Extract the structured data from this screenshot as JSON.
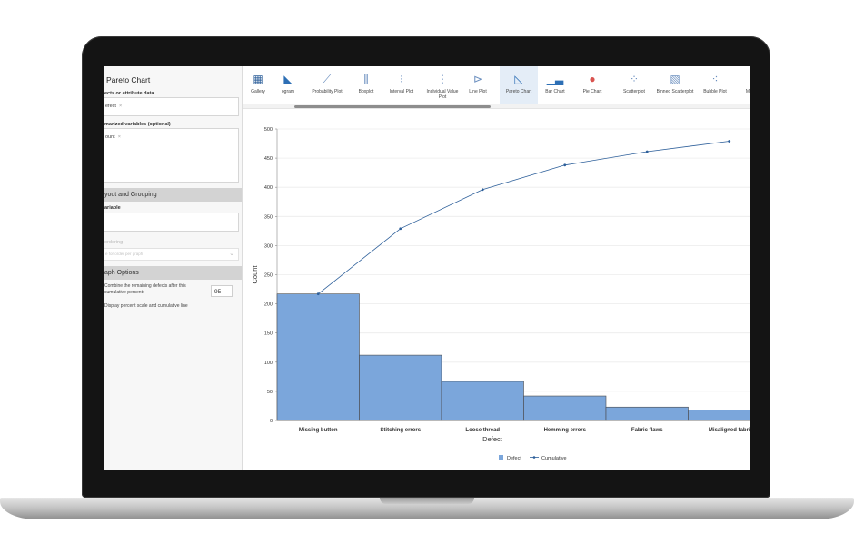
{
  "left_panel": {
    "title": "Pareto Chart",
    "defects_label": "ects or attribute data",
    "defects_value": "efect",
    "summarized_label": "marized variables (optional)",
    "summarized_value": "ount",
    "layout_section": "yout and Grouping",
    "variable_label": "ariable",
    "ordering_label": "ordering",
    "ordering_placeholder": "e for order per graph",
    "graph_options_section": "aph Options",
    "combine_text_1": "Combine the remaining defects after this",
    "combine_text_2": "cumulative percent:",
    "combine_value": "95",
    "display_text": "Display percent scale and cumulative line"
  },
  "gallery": {
    "items": [
      {
        "label": "Gallery",
        "icon": "grid-icon"
      },
      {
        "label": "ogram",
        "icon": "histogram-icon"
      },
      {
        "label": "Probability Plot",
        "icon": "probability-plot-icon"
      },
      {
        "label": "Boxplot",
        "icon": "boxplot-icon"
      },
      {
        "label": "Interval Plot",
        "icon": "interval-plot-icon"
      },
      {
        "label": "Individual Value Plot",
        "icon": "individual-value-plot-icon"
      },
      {
        "label": "Line Plot",
        "icon": "line-plot-icon"
      },
      {
        "label": "Pareto Chart",
        "icon": "pareto-chart-icon"
      },
      {
        "label": "Bar Chart",
        "icon": "bar-chart-icon"
      },
      {
        "label": "Pie Chart",
        "icon": "pie-chart-icon"
      },
      {
        "label": "Scatterplot",
        "icon": "scatterplot-icon"
      },
      {
        "label": "Binned Scatterplot",
        "icon": "binned-scatterplot-icon"
      },
      {
        "label": "Bubble Plot",
        "icon": "bubble-plot-icon"
      },
      {
        "label": "M",
        "icon": "more-icon"
      }
    ],
    "active": "Pareto Chart"
  },
  "chart_data": {
    "type": "bar",
    "categories": [
      "Missing button",
      "Stitching errors",
      "Loose thread",
      "Hemming errors",
      "Fabric flaws",
      "Misaligned fabri"
    ],
    "series": [
      {
        "name": "Defect",
        "type": "bar",
        "values": [
          217,
          112,
          67,
          42,
          23,
          18
        ]
      },
      {
        "name": "Cumulative",
        "type": "line",
        "values": [
          217,
          329,
          396,
          438,
          461,
          479
        ]
      }
    ],
    "xlabel": "Defect",
    "ylabel": "Count",
    "ylim": [
      0,
      500
    ],
    "yticks": [
      0,
      50,
      100,
      150,
      200,
      250,
      300,
      350,
      400,
      450,
      500
    ],
    "grid": true,
    "legend": "bottom",
    "colors": {
      "bar": "#7ba6db",
      "bar_edge": "#4a4a4a",
      "line": "#2d5f9a"
    }
  }
}
